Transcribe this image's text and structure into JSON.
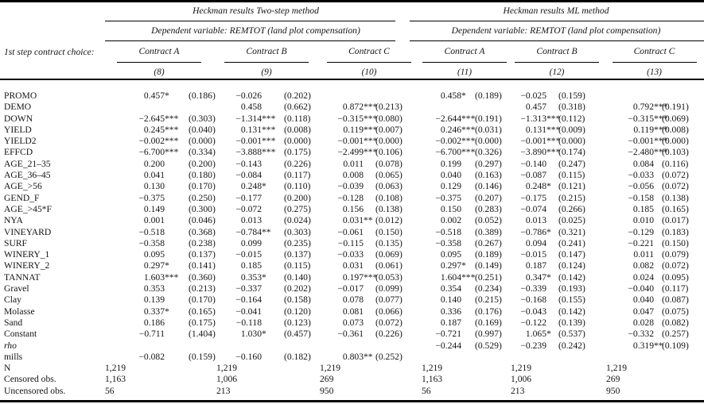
{
  "header": {
    "method_left": "Heckman results Two-step method",
    "method_right": "Heckman results ML method",
    "dep_var": "Dependent variable: REMTOT (land plot compensation)",
    "first_step_label": "1st step contract choice:",
    "contracts": [
      "Contract A",
      "Contract B",
      "Contract C"
    ],
    "col_numbers": [
      "(8)",
      "(9)",
      "(10)",
      "(11)",
      "(12)",
      "(13)"
    ]
  },
  "rows": [
    {
      "label": "PROMO",
      "cells": [
        [
          "0.457*",
          "(0.186)"
        ],
        [
          "−0.026",
          "(0.202)"
        ],
        null,
        [
          "0.458*",
          "(0.189)"
        ],
        [
          "−0.025",
          "(0.159)"
        ],
        null
      ]
    },
    {
      "label": "DEMO",
      "cells": [
        null,
        [
          "0.458",
          "(0.662)"
        ],
        [
          "0.872***",
          "(0.213)"
        ],
        null,
        [
          "0.457",
          "(0.318)"
        ],
        [
          "0.792***",
          "(0.191)"
        ]
      ]
    },
    {
      "label": "DOWN",
      "cells": [
        [
          "−2.645***",
          "(0.303)"
        ],
        [
          "−1.314***",
          "(0.118)"
        ],
        [
          "−0.315***",
          "(0.080)"
        ],
        [
          "−2.644***",
          "(0.191)"
        ],
        [
          "−1.313***",
          "(0.112)"
        ],
        [
          "−0.315***",
          "(0.069)"
        ]
      ]
    },
    {
      "label": "YIELD",
      "cells": [
        [
          "0.245***",
          "(0.040)"
        ],
        [
          "0.131***",
          "(0.008)"
        ],
        [
          "0.119***",
          "(0.007)"
        ],
        [
          "0.246***",
          "(0.031)"
        ],
        [
          "0.131***",
          "(0.009)"
        ],
        [
          "0.119***",
          "(0.008)"
        ]
      ]
    },
    {
      "label": "YIELD2",
      "cells": [
        [
          "−0.002***",
          "(0.000)"
        ],
        [
          "−0.001***",
          "(0.000)"
        ],
        [
          "−0.001***",
          "(0.000)"
        ],
        [
          "−0.002***",
          "(0.000)"
        ],
        [
          "−0.001***",
          "(0.000)"
        ],
        [
          "−0.001***",
          "(0.000)"
        ]
      ]
    },
    {
      "label": "EFFCD",
      "cells": [
        [
          "−6.700***",
          "(0.334)"
        ],
        [
          "−3.888***",
          "(0.175)"
        ],
        [
          "−2.499***",
          "(0.106)"
        ],
        [
          "−6.700***",
          "(0.326)"
        ],
        [
          "−3.890***",
          "(0.174)"
        ],
        [
          "−2.480***",
          "(0.103)"
        ]
      ]
    },
    {
      "label": "AGE_21–35",
      "cells": [
        [
          "0.200",
          "(0.200)"
        ],
        [
          "−0.143",
          "(0.226)"
        ],
        [
          "0.011",
          "(0.078)"
        ],
        [
          "0.199",
          "(0.297)"
        ],
        [
          "−0.140",
          "(0.247)"
        ],
        [
          "0.084",
          "(0.116)"
        ]
      ]
    },
    {
      "label": "AGE_36–45",
      "cells": [
        [
          "0.041",
          "(0.180)"
        ],
        [
          "−0.084",
          "(0.117)"
        ],
        [
          "0.008",
          "(0.065)"
        ],
        [
          "0.040",
          "(0.163)"
        ],
        [
          "−0.087",
          "(0.115)"
        ],
        [
          "−0.033",
          "(0.072)"
        ]
      ]
    },
    {
      "label": "AGE_>56",
      "cells": [
        [
          "0.130",
          "(0.170)"
        ],
        [
          "0.248*",
          "(0.110)"
        ],
        [
          "−0.039",
          "(0.063)"
        ],
        [
          "0.129",
          "(0.146)"
        ],
        [
          "0.248*",
          "(0.121)"
        ],
        [
          "−0.056",
          "(0.072)"
        ]
      ]
    },
    {
      "label": "GEND_F",
      "cells": [
        [
          "−0.375",
          "(0.250)"
        ],
        [
          "−0.177",
          "(0.200)"
        ],
        [
          "−0.128",
          "(0.108)"
        ],
        [
          "−0.375",
          "(0.207)"
        ],
        [
          "−0.175",
          "(0.215)"
        ],
        [
          "−0.158",
          "(0.138)"
        ]
      ]
    },
    {
      "label": "AGE_>45*F",
      "cells": [
        [
          "0.149",
          "(0.300)"
        ],
        [
          "−0.072",
          "(0.275)"
        ],
        [
          "0.156",
          "(0.138)"
        ],
        [
          "0.150",
          "(0.283)"
        ],
        [
          "−0.074",
          "(0.266)"
        ],
        [
          "0.185",
          "(0.165)"
        ]
      ]
    },
    {
      "label": "NYA",
      "cells": [
        [
          "0.001",
          "(0.046)"
        ],
        [
          "0.013",
          "(0.024)"
        ],
        [
          "0.031**",
          "(0.012)"
        ],
        [
          "0.002",
          "(0.052)"
        ],
        [
          "0.013",
          "(0.025)"
        ],
        [
          "0.010",
          "(0.017)"
        ]
      ]
    },
    {
      "label": "VINEYARD",
      "cells": [
        [
          "−0.518",
          "(0.368)"
        ],
        [
          "−0.784**",
          "(0.303)"
        ],
        [
          "−0.061",
          "(0.150)"
        ],
        [
          "−0.518",
          "(0.389)"
        ],
        [
          "−0.786*",
          "(0.321)"
        ],
        [
          "−0.129",
          "(0.183)"
        ]
      ]
    },
    {
      "label": "SURF",
      "cells": [
        [
          "−0.358",
          "(0.238)"
        ],
        [
          "0.099",
          "(0.235)"
        ],
        [
          "−0.115",
          "(0.135)"
        ],
        [
          "−0.358",
          "(0.267)"
        ],
        [
          "0.094",
          "(0.241)"
        ],
        [
          "−0.221",
          "(0.150)"
        ]
      ]
    },
    {
      "label": "WINERY_1",
      "cells": [
        [
          "0.095",
          "(0.137)"
        ],
        [
          "−0.015",
          "(0.137)"
        ],
        [
          "−0.033",
          "(0.069)"
        ],
        [
          "0.095",
          "(0.189)"
        ],
        [
          "−0.015",
          "(0.147)"
        ],
        [
          "0.011",
          "(0.079)"
        ]
      ]
    },
    {
      "label": "WINERY_2",
      "cells": [
        [
          "0.297*",
          "(0.141)"
        ],
        [
          "0.185",
          "(0.115)"
        ],
        [
          "0.031",
          "(0.061)"
        ],
        [
          "0.297*",
          "(0.149)"
        ],
        [
          "0.187",
          "(0.124)"
        ],
        [
          "0.082",
          "(0.072)"
        ]
      ]
    },
    {
      "label": "TANNAT",
      "cells": [
        [
          "1.603***",
          "(0.360)"
        ],
        [
          "0.353*",
          "(0.140)"
        ],
        [
          "0.197***",
          "(0.053)"
        ],
        [
          "1.604***",
          "(0.251)"
        ],
        [
          "0.347*",
          "(0.142)"
        ],
        [
          "0.024",
          "(0.095)"
        ]
      ]
    },
    {
      "label": "Gravel",
      "cells": [
        [
          "0.353",
          "(0.213)"
        ],
        [
          "−0.337",
          "(0.202)"
        ],
        [
          "−0.017",
          "(0.099)"
        ],
        [
          "0.354",
          "(0.234)"
        ],
        [
          "−0.339",
          "(0.193)"
        ],
        [
          "−0.040",
          "(0.117)"
        ]
      ]
    },
    {
      "label": "Clay",
      "cells": [
        [
          "0.139",
          "(0.170)"
        ],
        [
          "−0.164",
          "(0.158)"
        ],
        [
          "0.078",
          "(0.077)"
        ],
        [
          "0.140",
          "(0.215)"
        ],
        [
          "−0.168",
          "(0.155)"
        ],
        [
          "0.040",
          "(0.087)"
        ]
      ]
    },
    {
      "label": "Molasse",
      "cells": [
        [
          "0.337*",
          "(0.165)"
        ],
        [
          "−0.041",
          "(0.120)"
        ],
        [
          "0.081",
          "(0.066)"
        ],
        [
          "0.336",
          "(0.176)"
        ],
        [
          "−0.043",
          "(0.142)"
        ],
        [
          "0.047",
          "(0.075)"
        ]
      ]
    },
    {
      "label": "Sand",
      "cells": [
        [
          "0.186",
          "(0.175)"
        ],
        [
          "−0.118",
          "(0.123)"
        ],
        [
          "0.073",
          "(0.072)"
        ],
        [
          "0.187",
          "(0.169)"
        ],
        [
          "−0.122",
          "(0.139)"
        ],
        [
          "0.028",
          "(0.082)"
        ]
      ]
    },
    {
      "label": "Constant",
      "cells": [
        [
          "−0.711",
          "(1.404)"
        ],
        [
          "1.030*",
          "(0.457)"
        ],
        [
          "−0.361",
          "(0.226)"
        ],
        [
          "−0.721",
          "(0.997)"
        ],
        [
          "1.065*",
          "(0.537)"
        ],
        [
          "−0.332",
          "(0.257)"
        ]
      ]
    },
    {
      "label": "rho",
      "italic": true,
      "cells": [
        null,
        null,
        null,
        [
          "−0.244",
          "(0.529)"
        ],
        [
          "−0.239",
          "(0.242)"
        ],
        [
          "0.319**",
          "(0.109)"
        ]
      ]
    },
    {
      "label": "mills",
      "cells": [
        [
          "−0.082",
          "(0.159)"
        ],
        [
          "−0.160",
          "(0.182)"
        ],
        [
          "0.803**",
          "(0.252)"
        ],
        null,
        null,
        null
      ]
    },
    {
      "label": "N",
      "stat": true,
      "cells": [
        [
          "1,219"
        ],
        [
          "1,219"
        ],
        [
          "1,219"
        ],
        [
          "1,219"
        ],
        [
          "1,219"
        ],
        [
          "1,219"
        ]
      ]
    },
    {
      "label": "Censored obs.",
      "stat": true,
      "cells": [
        [
          "1,163"
        ],
        [
          "1,006"
        ],
        [
          "269"
        ],
        [
          "1,163"
        ],
        [
          "1,006"
        ],
        [
          "269"
        ]
      ]
    },
    {
      "label": "Uncensored obs.",
      "stat": true,
      "cells": [
        [
          "56"
        ],
        [
          "213"
        ],
        [
          "950"
        ],
        [
          "56"
        ],
        [
          "213"
        ],
        [
          "950"
        ]
      ]
    }
  ]
}
